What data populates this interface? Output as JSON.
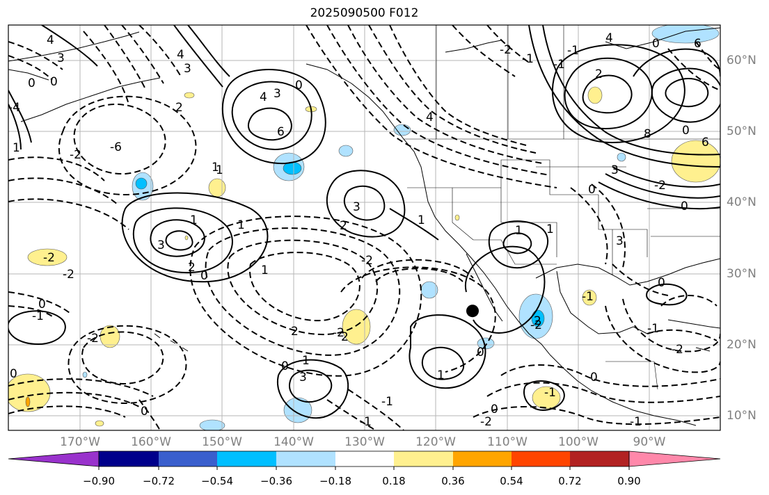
{
  "title": "2025090500 F012",
  "map": {
    "projection": "cylindrical",
    "extent": {
      "lon_min": -180,
      "lon_max": -80,
      "lat_min": 8,
      "lat_max": 65
    },
    "marker": {
      "lon": -114.8,
      "lat": 24.8,
      "color": "#000000"
    },
    "lon_labels": [
      "170°W",
      "160°W",
      "150°W",
      "140°W",
      "130°W",
      "120°W",
      "110°W",
      "100°W",
      "90°W"
    ],
    "lat_labels": [
      "60°N",
      "50°N",
      "40°N",
      "30°N",
      "20°N",
      "10°N"
    ],
    "contour_labels": [
      "4",
      "3",
      "0",
      "0",
      "4",
      "3",
      "2",
      "4",
      "3",
      "0",
      "6",
      "4",
      "2",
      "0",
      "6",
      "-6",
      "6",
      "4",
      "-4",
      "3",
      "3",
      "1",
      "-2",
      "1",
      "1",
      "2",
      "2",
      "-2",
      "3",
      "1",
      "-2",
      "2",
      "1",
      "0",
      "-1",
      "0",
      "-2",
      "3",
      "0",
      "-2",
      "-2",
      "-2",
      "1",
      "1",
      "-1",
      "-1",
      "0",
      "-2",
      "0",
      "-1",
      "2",
      "-1",
      "0",
      "-2",
      "-1",
      "0",
      "0",
      "-1",
      "0",
      "2",
      "-1",
      "8",
      "0",
      "0",
      "-2",
      "-1",
      "3",
      "-1",
      "0",
      "1",
      "-2",
      "1",
      "1",
      "1"
    ]
  },
  "colorbar": {
    "colors": [
      "#9932cc",
      "#00008b",
      "#3a5fcd",
      "#00bfff",
      "#b0e2ff",
      "#ffffff",
      "#fff08f",
      "#ffa500",
      "#ff4500",
      "#b22222",
      "#ff88aa"
    ],
    "ticks": [
      "−0.90",
      "−0.72",
      "−0.54",
      "−0.36",
      "−0.18",
      "0.18",
      "0.36",
      "0.54",
      "0.72",
      "0.90"
    ],
    "extend": "both"
  }
}
